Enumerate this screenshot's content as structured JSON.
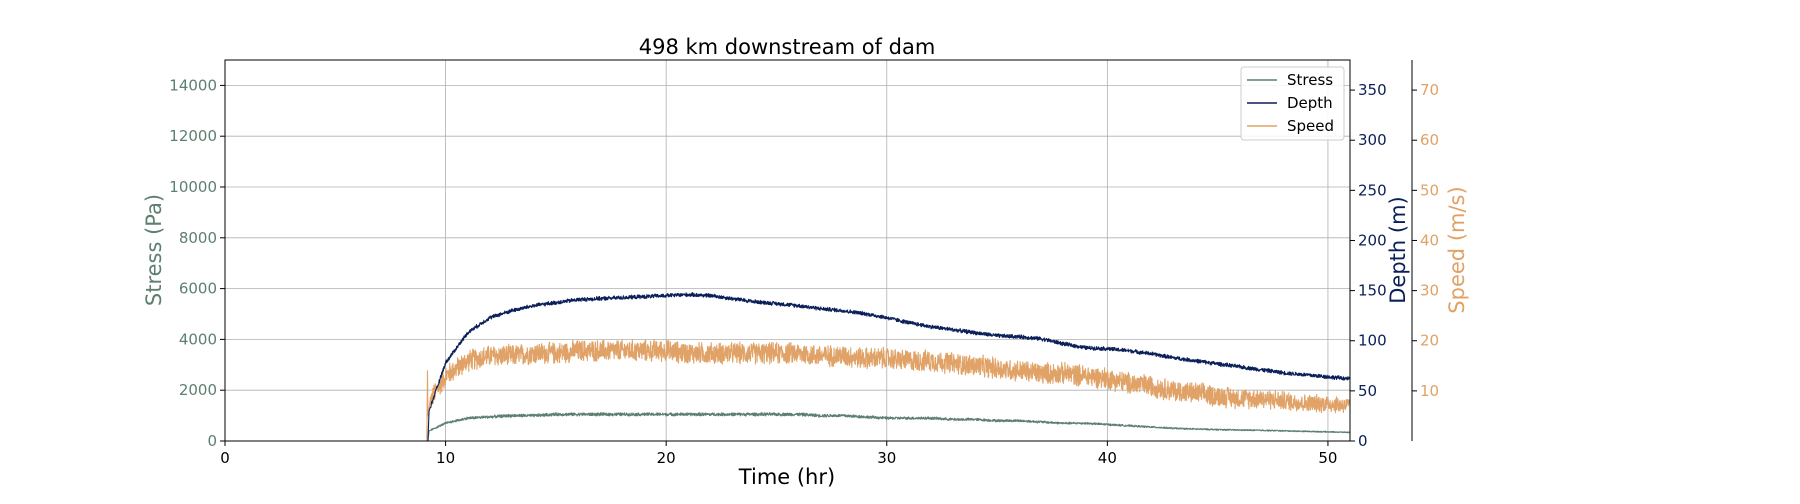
{
  "chart_data": {
    "type": "line",
    "title": "498 km downstream of dam",
    "xlabel": "Time (hr)",
    "xlim": [
      0,
      51
    ],
    "xticks": [
      0,
      10,
      20,
      30,
      40,
      50
    ],
    "grid": true,
    "legend_position": "top-right",
    "axes": {
      "stress": {
        "label": "Stress (Pa)",
        "side": "left",
        "color": "#5d7f6f",
        "ylim": [
          0,
          15000
        ],
        "ticks": [
          0,
          2000,
          4000,
          6000,
          8000,
          10000,
          12000,
          14000
        ]
      },
      "depth": {
        "label": "Depth (m)",
        "side": "right",
        "color": "#0b1f58",
        "ylim": [
          0,
          380
        ],
        "ticks": [
          0,
          50,
          100,
          150,
          200,
          250,
          300,
          350
        ]
      },
      "speed": {
        "label": "Speed (m/s)",
        "side": "right-outer",
        "color": "#e0a266",
        "ylim": [
          0,
          76
        ],
        "ticks": [
          10,
          20,
          30,
          40,
          50,
          60,
          70
        ]
      }
    },
    "series": [
      {
        "name": "Stress",
        "axis": "stress",
        "color": "#5d7f6f",
        "noise": 120,
        "x": [
          0,
          9.2,
          9.25,
          10,
          11,
          12,
          13,
          14,
          15,
          16,
          17,
          18,
          19,
          20,
          21,
          22,
          23,
          24,
          25,
          26,
          27,
          28,
          29,
          30,
          31,
          32,
          33,
          34,
          35,
          36,
          37,
          38,
          39,
          40,
          41,
          42,
          43,
          44,
          45,
          46,
          47,
          48,
          49,
          50,
          51
        ],
        "values": [
          0,
          0,
          400,
          700,
          900,
          950,
          1000,
          1000,
          1050,
          1050,
          1050,
          1050,
          1050,
          1050,
          1050,
          1050,
          1050,
          1050,
          1050,
          1050,
          1000,
          1000,
          950,
          900,
          900,
          900,
          850,
          850,
          800,
          800,
          750,
          700,
          700,
          650,
          600,
          550,
          500,
          470,
          450,
          430,
          420,
          400,
          380,
          360,
          340
        ]
      },
      {
        "name": "Depth",
        "axis": "depth",
        "color": "#0b1f58",
        "noise": 2.2,
        "x": [
          0,
          9.2,
          9.25,
          10,
          11,
          12,
          13,
          14,
          15,
          16,
          17,
          18,
          19,
          20,
          21,
          22,
          23,
          24,
          25,
          26,
          27,
          28,
          29,
          30,
          31,
          32,
          33,
          34,
          35,
          36,
          37,
          38,
          39,
          40,
          41,
          42,
          43,
          44,
          45,
          46,
          47,
          48,
          49,
          50,
          51
        ],
        "values": [
          0,
          0,
          30,
          78,
          108,
          123,
          130,
          135,
          138,
          141,
          142,
          143,
          144,
          145,
          146,
          145,
          142,
          139,
          137,
          135,
          132,
          130,
          127,
          123,
          118,
          114,
          111,
          108,
          105,
          104,
          102,
          97,
          93,
          92,
          90,
          87,
          83,
          80,
          77,
          74,
          71,
          68,
          66,
          64,
          62
        ]
      },
      {
        "name": "Speed",
        "axis": "speed",
        "color": "#e0a266",
        "noise": 2.4,
        "x": [
          0,
          9.15,
          9.18,
          9.2,
          9.3,
          10,
          11,
          12,
          13,
          14,
          15,
          16,
          17,
          18,
          19,
          20,
          21,
          22,
          23,
          24,
          25,
          26,
          27,
          28,
          29,
          30,
          31,
          32,
          33,
          34,
          35,
          36,
          37,
          38,
          39,
          40,
          41,
          42,
          43,
          44,
          45,
          46,
          47,
          48,
          49,
          50,
          51
        ],
        "values": [
          0,
          0,
          14,
          5,
          8,
          13,
          16,
          17,
          17,
          17.5,
          17.5,
          18,
          18,
          18,
          18,
          18,
          17.5,
          17.5,
          17.5,
          17.5,
          17.5,
          17.5,
          17,
          17,
          16.5,
          16.5,
          16,
          16,
          15.5,
          15,
          14.5,
          14,
          13.5,
          13.5,
          13,
          12.5,
          11.5,
          11,
          10,
          9.5,
          9,
          8.5,
          8.5,
          8,
          7.5,
          7.5,
          7
        ]
      }
    ]
  }
}
